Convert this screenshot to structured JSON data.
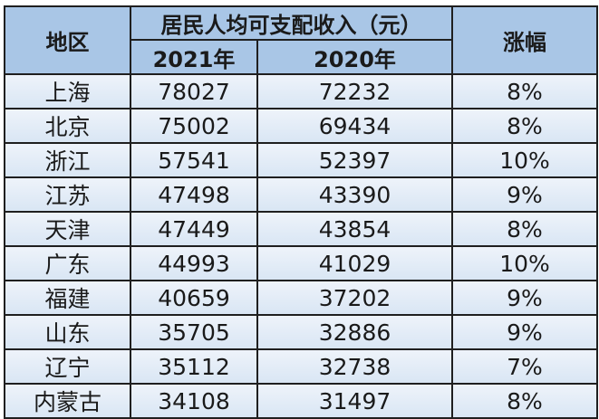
{
  "header": {
    "region": "地区",
    "income_group": "居民人均可支配收入（元）",
    "year2021": "2021年",
    "year2020": "2020年",
    "growth": "涨幅"
  },
  "rows": [
    {
      "region": "上海",
      "y2021": "78027",
      "y2020": "72232",
      "growth": "8%"
    },
    {
      "region": "北京",
      "y2021": "75002",
      "y2020": "69434",
      "growth": "8%"
    },
    {
      "region": "浙江",
      "y2021": "57541",
      "y2020": "52397",
      "growth": "10%"
    },
    {
      "region": "江苏",
      "y2021": "47498",
      "y2020": "43390",
      "growth": "9%"
    },
    {
      "region": "天津",
      "y2021": "47449",
      "y2020": "43854",
      "growth": "8%"
    },
    {
      "region": "广东",
      "y2021": "44993",
      "y2020": "41029",
      "growth": "10%"
    },
    {
      "region": "福建",
      "y2021": "40659",
      "y2020": "37202",
      "growth": "9%"
    },
    {
      "region": "山东",
      "y2021": "35705",
      "y2020": "32886",
      "growth": "9%"
    },
    {
      "region": "辽宁",
      "y2021": "35112",
      "y2020": "32738",
      "growth": "7%"
    },
    {
      "region": "内蒙古",
      "y2021": "34108",
      "y2020": "31497",
      "growth": "8%"
    }
  ],
  "colors": {
    "header_bg": "#a9c6e6",
    "row_bg": "#dfe9f5",
    "border": "#1f1f1f"
  }
}
